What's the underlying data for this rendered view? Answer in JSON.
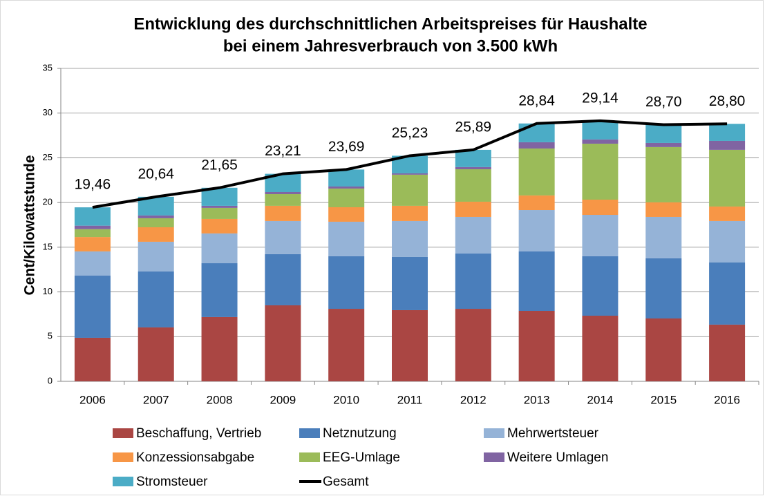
{
  "chart_data": {
    "type": "stacked-bar-line",
    "title": [
      "Entwicklung des durchschnittlichen Arbeitspreises für Haushalte",
      "bei einem Jahresverbrauch von 3.500 kWh"
    ],
    "y_label": "Cent/Kilowattstunde",
    "categories": [
      "2006",
      "2007",
      "2008",
      "2009",
      "2010",
      "2011",
      "2012",
      "2013",
      "2014",
      "2015",
      "2016"
    ],
    "ylim": [
      0,
      35
    ],
    "yticks": [
      0,
      5,
      10,
      15,
      20,
      25,
      30,
      35
    ],
    "grid": true,
    "series": [
      {
        "name": "Beschaffung, Vertrieb",
        "color": "#aa4643",
        "values": [
          4.87,
          6.03,
          7.19,
          8.5,
          8.11,
          7.96,
          8.11,
          7.88,
          7.34,
          7.03,
          6.34
        ]
      },
      {
        "name": "Netznutzung",
        "color": "#4a7ebb",
        "values": [
          6.95,
          6.26,
          6.02,
          5.72,
          5.88,
          5.95,
          6.19,
          6.65,
          6.65,
          6.73,
          6.95
        ]
      },
      {
        "name": "Mehrwertsteuer",
        "color": "#95b3d7",
        "values": [
          2.71,
          3.32,
          3.33,
          3.71,
          3.86,
          4.02,
          4.09,
          4.63,
          4.63,
          4.63,
          4.64
        ]
      },
      {
        "name": "Konzessionsabgabe",
        "color": "#f79646",
        "values": [
          1.61,
          1.62,
          1.62,
          1.7,
          1.62,
          1.7,
          1.7,
          1.63,
          1.7,
          1.63,
          1.62
        ]
      },
      {
        "name": "EEG-Umlage",
        "color": "#9bbb59",
        "values": [
          0.88,
          1.01,
          1.24,
          1.31,
          2.09,
          3.48,
          3.63,
          5.25,
          6.26,
          6.18,
          6.34
        ]
      },
      {
        "name": "Weitere Umlagen",
        "color": "#8064a2",
        "values": [
          0.39,
          0.31,
          0.23,
          0.23,
          0.23,
          0.15,
          0.24,
          0.7,
          0.47,
          0.46,
          1.0
        ]
      },
      {
        "name": "Stromsteuer",
        "color": "#4bacc6",
        "values": [
          2.05,
          2.09,
          2.02,
          2.04,
          1.9,
          1.97,
          1.93,
          2.1,
          2.09,
          2.04,
          1.91
        ]
      },
      {
        "name": "Gesamt",
        "color": "#000000",
        "type": "line",
        "values": [
          19.46,
          20.64,
          21.65,
          23.21,
          23.69,
          25.23,
          25.89,
          28.84,
          29.14,
          28.7,
          28.8
        ],
        "value_labels": [
          "19,46",
          "20,64",
          "21,65",
          "23,21",
          "23,69",
          "25,23",
          "25,89",
          "28,84",
          "29,14",
          "28,70",
          "28,80"
        ]
      }
    ]
  }
}
